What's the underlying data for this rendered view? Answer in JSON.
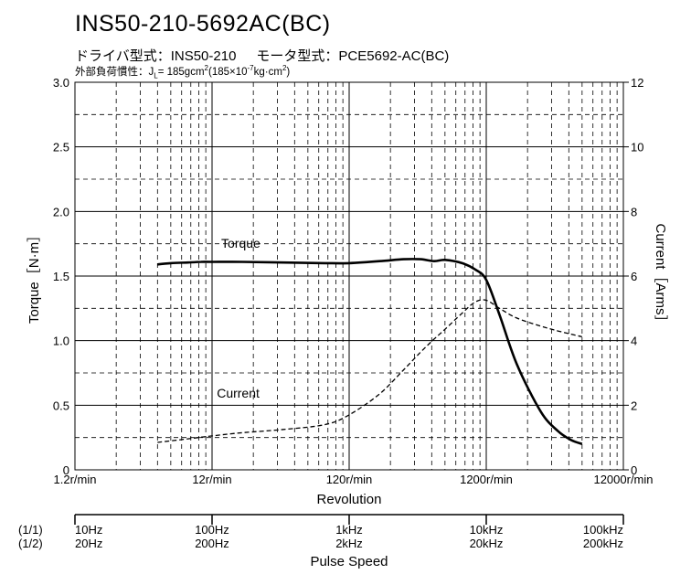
{
  "header": {
    "title": "INS50-210-5692AC(BC)",
    "driver_label": "ドライバ型式：INS50-210",
    "motor_label": "モータ型式：PCE5692-AC(BC)",
    "inertia_label": "外部負荷慣性：J",
    "inertia_sub": "L",
    "inertia_value": "= 185gcm",
    "inertia_sup": "2",
    "inertia_paren_open": "(185×10",
    "inertia_exp": "-7",
    "inertia_paren_unit": "kg·cm",
    "inertia_paren_sup": "2",
    "inertia_paren_close": ")"
  },
  "chart_data": {
    "type": "line",
    "x_scale": "log",
    "xlabel": "Revolution",
    "x_ticks": [
      {
        "value": 1.2,
        "label": "1.2r/min"
      },
      {
        "value": 12,
        "label": "12r/min"
      },
      {
        "value": 120,
        "label": "120r/min"
      },
      {
        "value": 1200,
        "label": "1200r/min"
      },
      {
        "value": 12000,
        "label": "12000r/min"
      }
    ],
    "xlim": [
      1.2,
      12000
    ],
    "left_axis": {
      "label": "Torque［N·m］",
      "lim": [
        0,
        3.0
      ],
      "ticks": [
        "0",
        "0.5",
        "1.0",
        "1.5",
        "2.0",
        "2.5",
        "3.0"
      ]
    },
    "right_axis": {
      "label": "Current［Arms］",
      "lim": [
        0,
        12
      ],
      "ticks": [
        "0",
        "2",
        "4",
        "6",
        "8",
        "10",
        "12"
      ]
    },
    "grid": true,
    "series": [
      {
        "name": "Torque",
        "axis": "left",
        "style": "solid",
        "color": "#000000",
        "x": [
          4.8,
          6,
          8,
          10,
          12,
          20,
          40,
          80,
          120,
          200,
          300,
          400,
          500,
          600,
          800,
          1000,
          1200,
          1500,
          2000,
          3000,
          4000,
          5000,
          6000
        ],
        "y": [
          1.59,
          1.6,
          1.605,
          1.61,
          1.61,
          1.61,
          1.605,
          1.6,
          1.6,
          1.615,
          1.63,
          1.63,
          1.615,
          1.625,
          1.6,
          1.55,
          1.47,
          1.2,
          0.82,
          0.45,
          0.3,
          0.23,
          0.2
        ]
      },
      {
        "name": "Current",
        "axis": "right",
        "style": "dashed",
        "color": "#000000",
        "x": [
          4.8,
          8,
          12,
          20,
          40,
          80,
          120,
          200,
          300,
          400,
          500,
          600,
          800,
          1000,
          1200,
          1500,
          2000,
          3000,
          4000,
          5000,
          6000
        ],
        "y": [
          0.85,
          0.96,
          1.05,
          1.15,
          1.25,
          1.4,
          1.7,
          2.35,
          3.1,
          3.65,
          4.05,
          4.35,
          4.85,
          5.2,
          5.25,
          5.0,
          4.7,
          4.45,
          4.3,
          4.2,
          4.12
        ]
      }
    ],
    "annotations": [
      {
        "text": "Torque",
        "series": "Torque"
      },
      {
        "text": "Current",
        "series": "Current"
      }
    ]
  },
  "pulse_axis": {
    "title": "Pulse Speed",
    "row1_label": "(1/1)",
    "row2_label": "(1/2)",
    "ticks": [
      {
        "row1": "10Hz",
        "row2": "20Hz"
      },
      {
        "row1": "100Hz",
        "row2": "200Hz"
      },
      {
        "row1": "1kHz",
        "row2": "2kHz"
      },
      {
        "row1": "10kHz",
        "row2": "20kHz"
      },
      {
        "row1": "100kHz",
        "row2": "200kHz"
      }
    ]
  }
}
